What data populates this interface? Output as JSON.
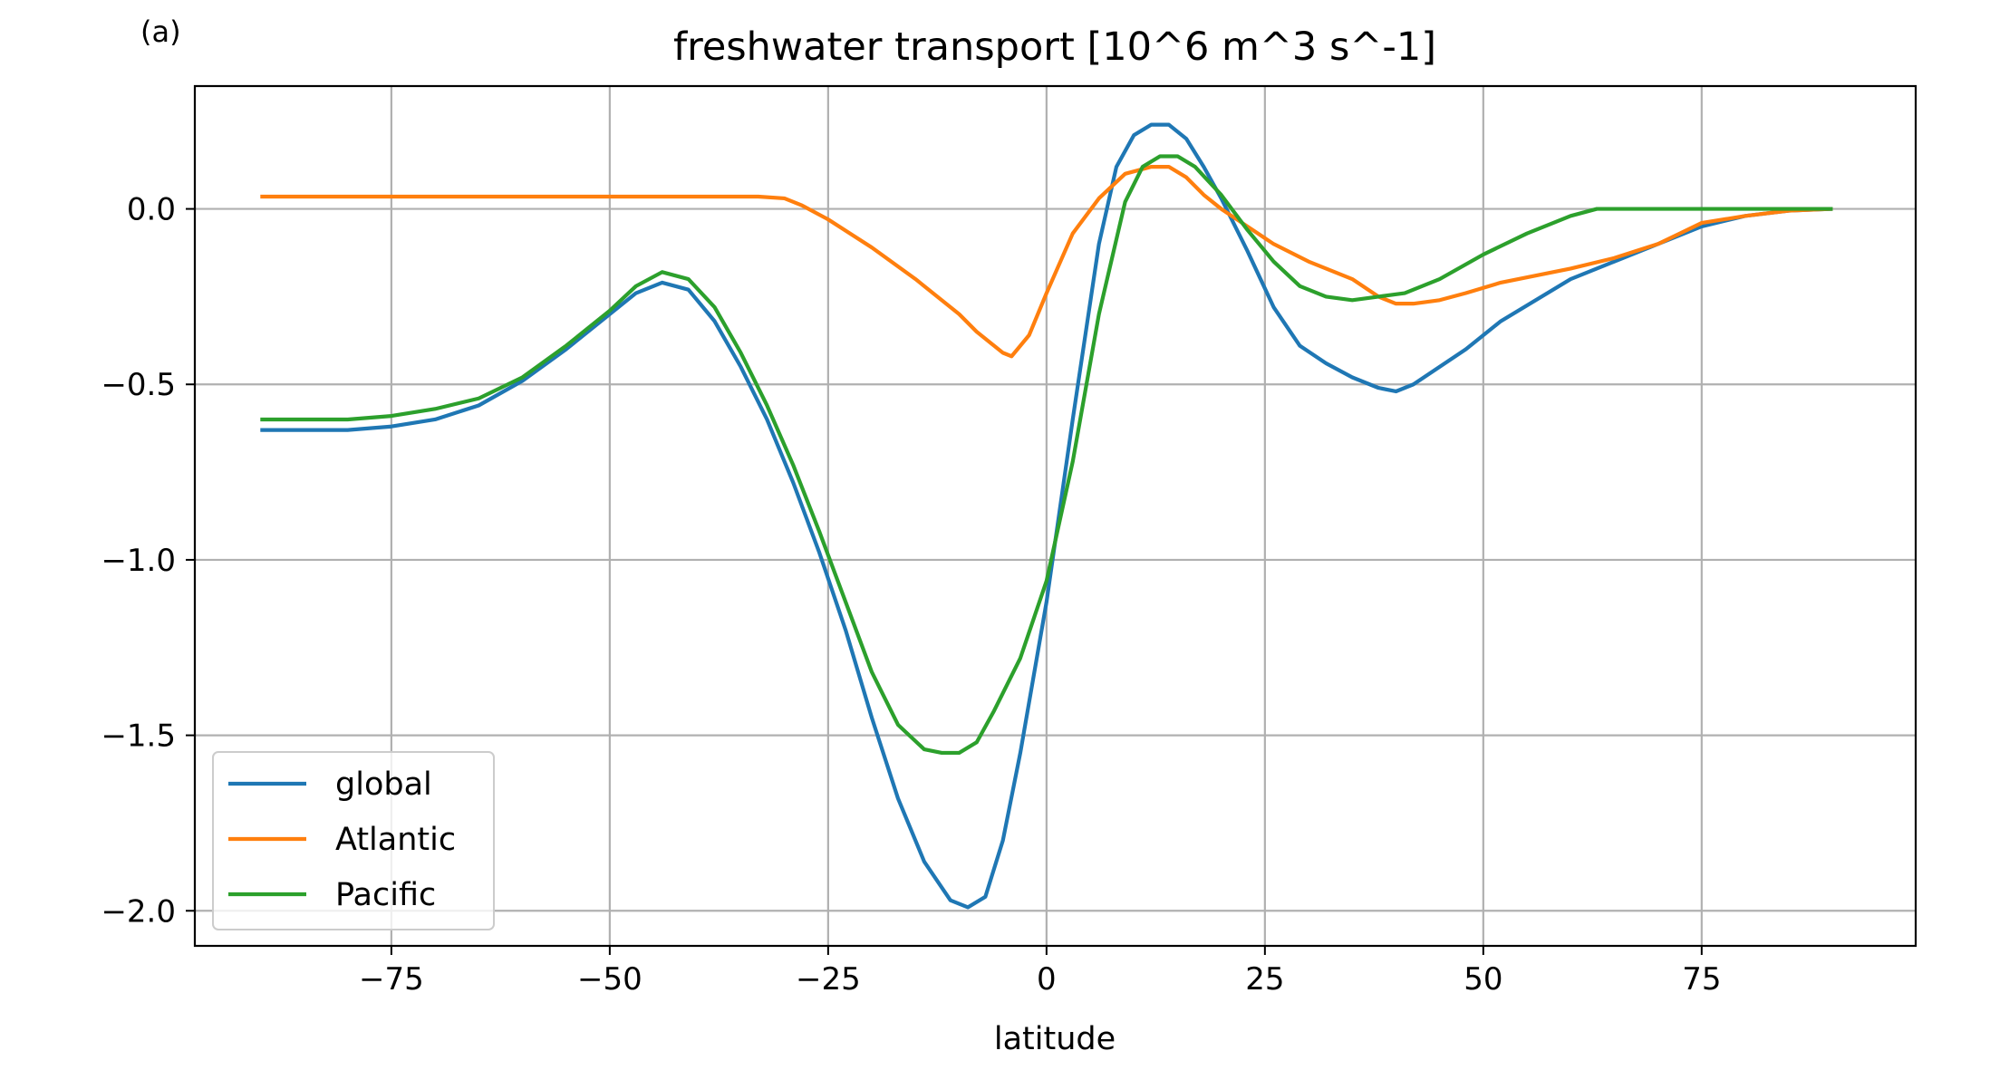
{
  "chart_data": {
    "type": "line",
    "panel_label": "(a)",
    "title": "freshwater transport [10^6 m^3 s^-1]",
    "xlabel": "latitude",
    "ylabel": "",
    "xlim": [
      -97.5,
      99.5
    ],
    "ylim": [
      -2.1,
      0.35
    ],
    "xticks": [
      -75,
      -50,
      -25,
      0,
      25,
      50,
      75
    ],
    "xtick_labels": [
      "−75",
      "−50",
      "−25",
      "0",
      "25",
      "50",
      "75"
    ],
    "yticks": [
      0.0,
      -0.5,
      -1.0,
      -1.5,
      -2.0
    ],
    "ytick_labels": [
      "0.0",
      "−0.5",
      "−1.0",
      "−1.5",
      "−2.0"
    ],
    "grid": true,
    "legend_position": "lower-left",
    "series": [
      {
        "name": "global",
        "color": "#1f77b4",
        "x": [
          -90,
          -80,
          -75,
          -70,
          -65,
          -60,
          -55,
          -50,
          -47,
          -44,
          -41,
          -38,
          -35,
          -32,
          -29,
          -26,
          -23,
          -20,
          -17,
          -14,
          -11,
          -9,
          -7,
          -5,
          -3,
          0,
          3,
          6,
          8,
          10,
          12,
          14,
          16,
          18,
          20,
          23,
          26,
          29,
          32,
          35,
          38,
          40,
          42,
          45,
          48,
          52,
          56,
          60,
          65,
          70,
          75,
          80,
          85,
          90
        ],
        "y": [
          -0.63,
          -0.63,
          -0.62,
          -0.6,
          -0.56,
          -0.49,
          -0.4,
          -0.3,
          -0.24,
          -0.21,
          -0.23,
          -0.32,
          -0.45,
          -0.6,
          -0.78,
          -0.98,
          -1.2,
          -1.45,
          -1.68,
          -1.86,
          -1.97,
          -1.99,
          -1.96,
          -1.8,
          -1.55,
          -1.12,
          -0.6,
          -0.1,
          0.12,
          0.21,
          0.24,
          0.24,
          0.2,
          0.12,
          0.03,
          -0.12,
          -0.28,
          -0.39,
          -0.44,
          -0.48,
          -0.51,
          -0.52,
          -0.5,
          -0.45,
          -0.4,
          -0.32,
          -0.26,
          -0.2,
          -0.15,
          -0.1,
          -0.05,
          -0.02,
          -0.005,
          0.0
        ]
      },
      {
        "name": "Atlantic",
        "color": "#ff7f0e",
        "x": [
          -90,
          -75,
          -50,
          -35,
          -33,
          -30,
          -28,
          -25,
          -20,
          -15,
          -10,
          -8,
          -6,
          -5,
          -4,
          -2,
          0,
          3,
          6,
          9,
          12,
          14,
          16,
          18,
          20,
          23,
          26,
          30,
          35,
          38,
          40,
          42,
          45,
          48,
          52,
          56,
          60,
          65,
          70,
          75,
          80,
          85,
          90
        ],
        "y": [
          0.035,
          0.035,
          0.035,
          0.035,
          0.035,
          0.03,
          0.01,
          -0.03,
          -0.11,
          -0.2,
          -0.3,
          -0.35,
          -0.39,
          -0.41,
          -0.42,
          -0.36,
          -0.24,
          -0.07,
          0.03,
          0.1,
          0.12,
          0.12,
          0.09,
          0.04,
          0.0,
          -0.05,
          -0.1,
          -0.15,
          -0.2,
          -0.25,
          -0.27,
          -0.27,
          -0.26,
          -0.24,
          -0.21,
          -0.19,
          -0.17,
          -0.14,
          -0.1,
          -0.04,
          -0.02,
          -0.005,
          0.0
        ]
      },
      {
        "name": "Pacific",
        "color": "#2ca02c",
        "x": [
          -90,
          -80,
          -75,
          -70,
          -65,
          -60,
          -55,
          -50,
          -47,
          -44,
          -41,
          -38,
          -35,
          -32,
          -29,
          -26,
          -23,
          -20,
          -17,
          -14,
          -12,
          -10,
          -8,
          -6,
          -3,
          0,
          3,
          6,
          9,
          11,
          13,
          15,
          17,
          20,
          23,
          26,
          29,
          32,
          35,
          38,
          41,
          45,
          50,
          55,
          60,
          63,
          70,
          80,
          90
        ],
        "y": [
          -0.6,
          -0.6,
          -0.59,
          -0.57,
          -0.54,
          -0.48,
          -0.39,
          -0.29,
          -0.22,
          -0.18,
          -0.2,
          -0.28,
          -0.41,
          -0.56,
          -0.73,
          -0.92,
          -1.12,
          -1.32,
          -1.47,
          -1.54,
          -1.55,
          -1.55,
          -1.52,
          -1.43,
          -1.28,
          -1.06,
          -0.72,
          -0.3,
          0.02,
          0.12,
          0.15,
          0.15,
          0.12,
          0.04,
          -0.06,
          -0.15,
          -0.22,
          -0.25,
          -0.26,
          -0.25,
          -0.24,
          -0.2,
          -0.13,
          -0.07,
          -0.02,
          0.0,
          0.0,
          0.0,
          0.0
        ]
      }
    ]
  }
}
